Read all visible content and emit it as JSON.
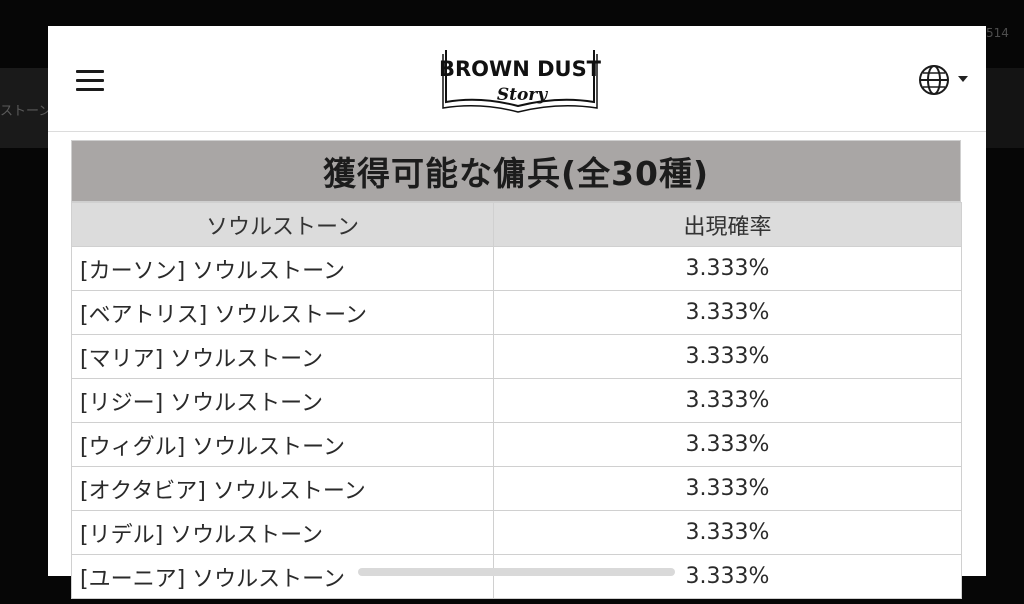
{
  "background": {
    "left_fragment": "ストーン",
    "right_fragment": "514"
  },
  "header": {
    "logo_line1": "BROWN DUST",
    "logo_line2": "Story"
  },
  "panel": {
    "title": "獲得可能な傭兵(全30種)",
    "columns": [
      "ソウルストーン",
      "出現確率"
    ],
    "rows": [
      {
        "name": "[カーソン] ソウルストーン",
        "rate": "3.333%"
      },
      {
        "name": "[ベアトリス] ソウルストーン",
        "rate": "3.333%"
      },
      {
        "name": "[マリア] ソウルストーン",
        "rate": "3.333%"
      },
      {
        "name": "[リジー] ソウルストーン",
        "rate": "3.333%"
      },
      {
        "name": "[ウィグル] ソウルストーン",
        "rate": "3.333%"
      },
      {
        "name": "[オクタビア] ソウルストーン",
        "rate": "3.333%"
      },
      {
        "name": "[リデル] ソウルストーン",
        "rate": "3.333%"
      },
      {
        "name": "[ユーニア] ソウルストーン",
        "rate": "3.333%"
      }
    ]
  },
  "icons": {
    "menu": "hamburger-menu-icon",
    "language": "globe-icon",
    "dropdown": "caret-down-icon"
  },
  "colors": {
    "title_bar": "#a9a6a5",
    "header_row": "#dcdcdc",
    "backdrop": "#060606"
  }
}
